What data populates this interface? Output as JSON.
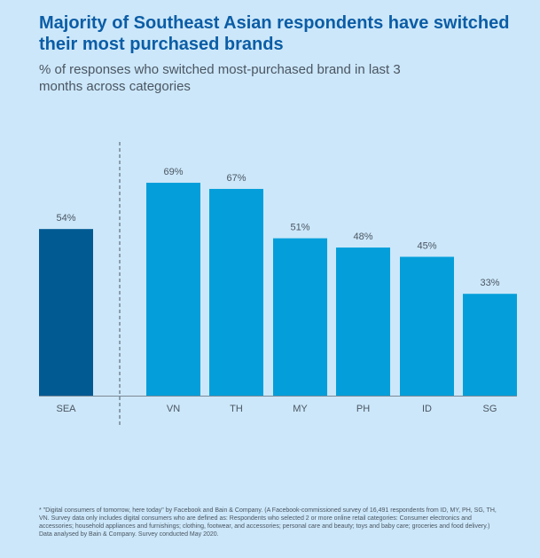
{
  "chart_data": {
    "type": "bar",
    "title": "Majority of Southeast Asian respondents have switched their most purchased brands",
    "subtitle": "% of responses who switched most-purchased brand in last 3 months across categories",
    "categories": [
      "SEA",
      "VN",
      "TH",
      "MY",
      "PH",
      "ID",
      "SG"
    ],
    "values": [
      54,
      69,
      67,
      51,
      48,
      45,
      33
    ],
    "value_labels": [
      "54%",
      "69%",
      "67%",
      "51%",
      "48%",
      "45%",
      "33%"
    ],
    "unit": "%",
    "ylim": [
      0,
      69
    ],
    "grid": false,
    "xlabel": "",
    "ylabel": "",
    "colors": {
      "aggregate": "#025a92",
      "country": "#049fda",
      "baseline": "#7b8a99",
      "divider": "#4a5663",
      "text": "#4a5663"
    }
  },
  "footnote": "* \"Digital consumers of tomorrow, here today\" by Facebook and Bain & Company. (A Facebook-commissioned survey of 16,491 respondents from ID, MY, PH, SG, TH, VN. Survey data only includes digital consumers who are defined as: Respondents who selected 2 or more online retail categories: Consumer electronics and accessories; household appliances and furnishings; clothing, footwear, and accessories; personal care and beauty; toys and baby care; groceries and food delivery.) Data analysed by Bain & Company. Survey conducted May 2020."
}
